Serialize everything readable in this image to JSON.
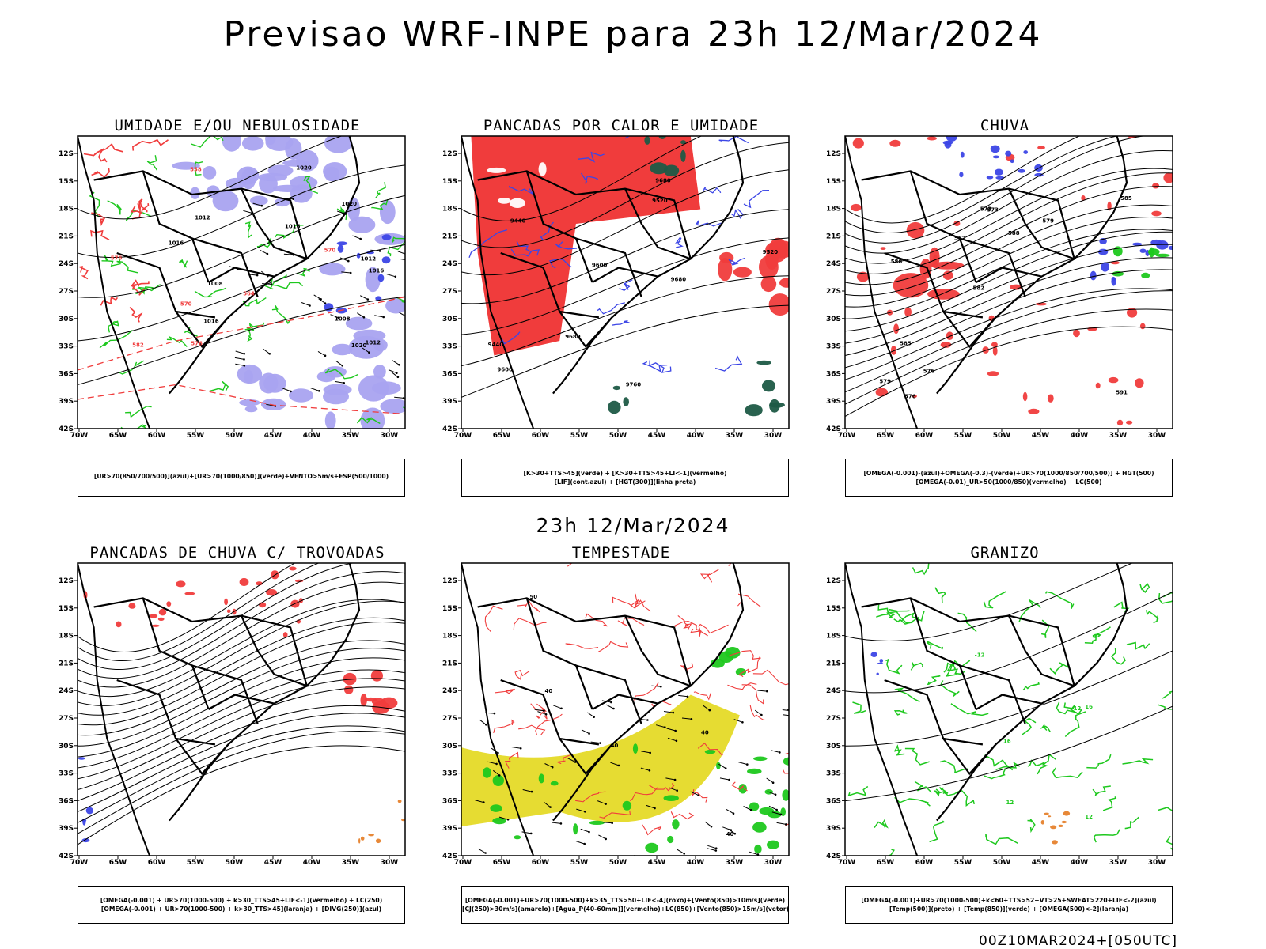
{
  "title": "Previsao WRF-INPE  para 23h 12/Mar/2024",
  "mid_title": "23h 12/Mar/2024",
  "run_label": "00Z10MAR2024+[050UTC]",
  "axes": {
    "lat_labels": [
      "12S",
      "15S",
      "18S",
      "21S",
      "24S",
      "27S",
      "30S",
      "33S",
      "36S",
      "39S",
      "42S"
    ],
    "lon_labels": [
      "70W",
      "65W",
      "60W",
      "55W",
      "50W",
      "45W",
      "40W",
      "35W",
      "30W"
    ]
  },
  "colors": {
    "green": "#1ec81e",
    "blue": "#3c46e6",
    "lavender": "#a9a3f0",
    "red": "#f03c3c",
    "darkgreen": "#1e5a46",
    "yellow": "#e6dc32",
    "orange": "#e6822d",
    "purple": "#b428c8"
  },
  "panels": [
    {
      "id": "umidade",
      "title": "UMIDADE E/OU NEBULOSIDADE",
      "legend": [
        "[UR>70(850/700/500)](azul)+[UR>70(1000/850)](verde)+VENTO>5m/s+ESP(500/1000)"
      ],
      "contour_labels": [
        "1012",
        "1012",
        "1016",
        "1016",
        "1008",
        "1012",
        "1016",
        "1020",
        "1020",
        "1020",
        "1016",
        "1008",
        "570",
        "576",
        "582",
        "564",
        "570",
        "576",
        "558"
      ]
    },
    {
      "id": "pancadas-calor",
      "title": "PANCADAS POR CALOR E UMIDADE",
      "legend": [
        "[K>30+TTS>45](verde) + [K>30+TTS>45+LI<-1](vermelho)",
        "[LIF](cont.azul) + [HGT(300)](linha preta)"
      ],
      "contour_labels": [
        "9680",
        "9760",
        "9680",
        "9680",
        "9520",
        "9600",
        "9600",
        "9520",
        "9440",
        "9440"
      ]
    },
    {
      "id": "chuva",
      "title": "CHUVA",
      "legend": [
        "[OMEGA(-0.001)-(azul)+OMEGA(-0.3)-(verde)+UR>70(1000/850/700/500)] + HGT(500)",
        "[OMEGA(-0.01)_UR>50(1000/850)(vermelho) + LC(500)"
      ],
      "contour_labels": [
        "591",
        "588",
        "585",
        "582",
        "579",
        "576",
        "573",
        "588",
        "585",
        "582",
        "579",
        "576",
        "573"
      ]
    },
    {
      "id": "pancadas-trovoadas",
      "title": "PANCADAS DE CHUVA C/ TROVOADAS",
      "legend": [
        "[OMEGA(-0.001) + UR>70(1000-500) + k>30_TTS>45+LIF<-1](vermelho) + LC(250)",
        "[OMEGA(-0.001) + UR>70(1000-500) + k>30_TTS>45](laranja) + [DIVG(250)](azul)"
      ],
      "contour_labels": []
    },
    {
      "id": "tempestade",
      "title": "TEMPESTADE",
      "legend": [
        "[OMEGA(-0.001)+UR>70(1000-500)+k>35_TTS>50+LIF<-4](roxo)+[Vento(850)>10m/s](verde)",
        "[CJ(250)>30m/s](amarelo)+[Agua_P(40-60mm)](vermelho)+LC(850)+[Vento(850)>15m/s](vetor)"
      ],
      "contour_labels": [
        "40",
        "40",
        "50",
        "40",
        "40"
      ]
    },
    {
      "id": "granizo",
      "title": "GRANIZO",
      "legend": [
        "[OMEGA(-0.001)+UR>70(1000-500)+k<60+TTS>52+VT>25+SWEAT>220+LIF<-2](azul)",
        "[Temp(500)](preto) + [Temp(850)](verde) + [OMEGA(500)<-2](laranja)"
      ],
      "contour_labels": [
        "-12",
        "12",
        "16",
        "16",
        "12",
        "-12"
      ]
    }
  ]
}
